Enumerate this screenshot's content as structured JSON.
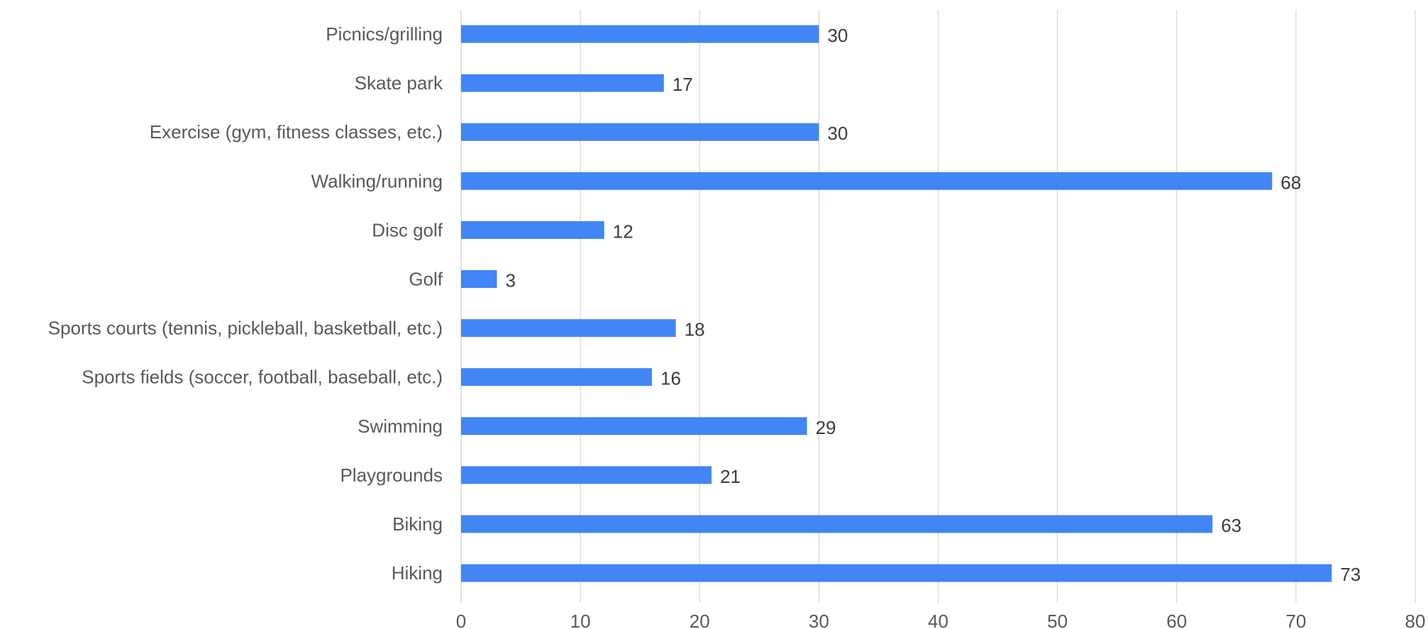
{
  "chart_data": {
    "type": "bar",
    "orientation": "horizontal",
    "title": "",
    "xlabel": "",
    "ylabel": "",
    "categories": [
      "Picnics/grilling",
      "Skate park",
      "Exercise (gym, fitness classes, etc.)",
      "Walking/running",
      "Disc golf",
      "Golf",
      "Sports courts (tennis, pickleball, basketball, etc.)",
      "Sports fields (soccer, football, baseball, etc.)",
      "Swimming",
      "Playgrounds",
      "Biking",
      "Hiking"
    ],
    "values": [
      30,
      17,
      30,
      68,
      12,
      3,
      18,
      16,
      29,
      21,
      63,
      73
    ],
    "xlim": [
      0,
      80
    ],
    "x_ticks": [
      "0",
      "10",
      "20",
      "30",
      "40",
      "50",
      "60",
      "70",
      "80"
    ],
    "grid": "vertical",
    "legend": "none",
    "data_labels": true,
    "bar_color": "#4285f4"
  }
}
